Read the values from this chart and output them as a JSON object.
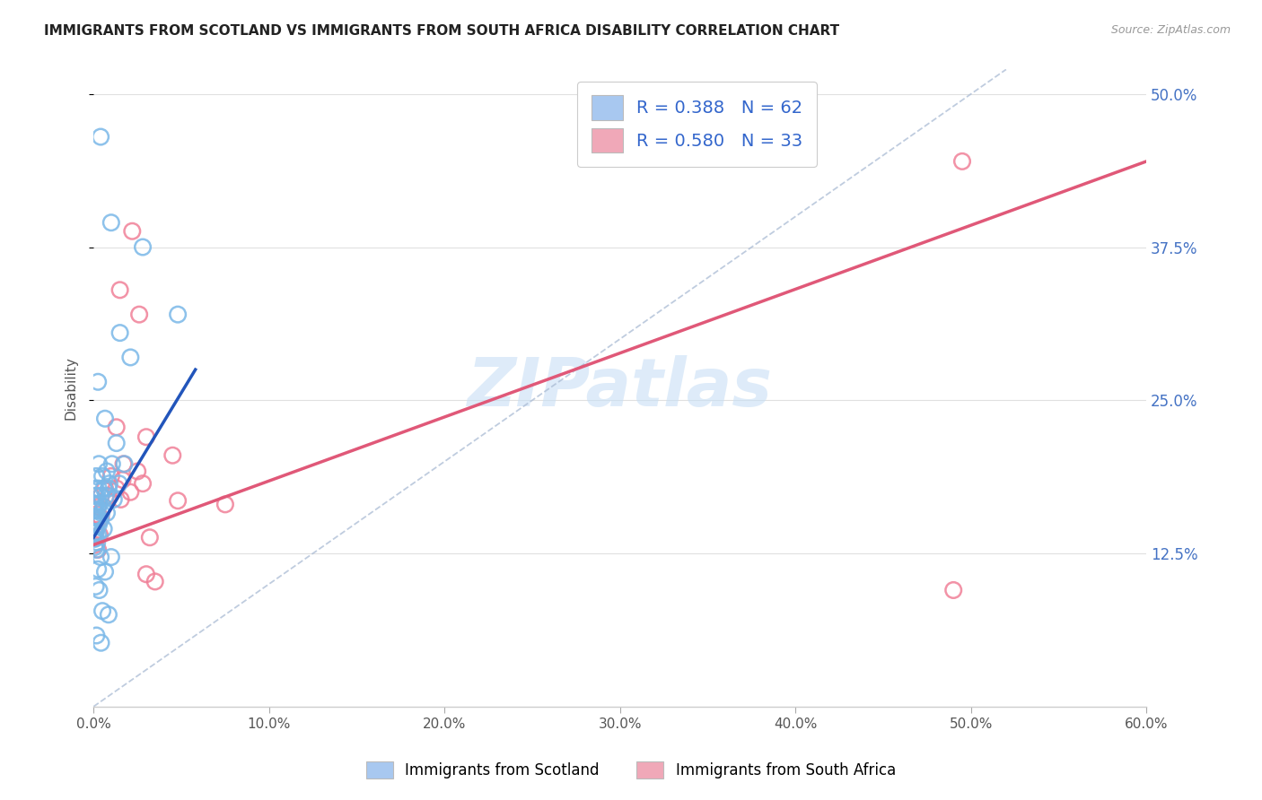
{
  "title": "IMMIGRANTS FROM SCOTLAND VS IMMIGRANTS FROM SOUTH AFRICA DISABILITY CORRELATION CHART",
  "source": "Source: ZipAtlas.com",
  "ylabel": "Disability",
  "x_tick_labels": [
    "0.0%",
    "10.0%",
    "20.0%",
    "30.0%",
    "40.0%",
    "50.0%",
    "60.0%"
  ],
  "x_tick_vals": [
    0.0,
    10.0,
    20.0,
    30.0,
    40.0,
    50.0,
    60.0
  ],
  "y_tick_labels_right": [
    "12.5%",
    "25.0%",
    "37.5%",
    "50.0%"
  ],
  "y_tick_vals": [
    12.5,
    25.0,
    37.5,
    50.0
  ],
  "xlim": [
    0.0,
    60.0
  ],
  "ylim": [
    0.0,
    52.0
  ],
  "legend_R1": "R = 0.388",
  "legend_N1": "N = 62",
  "legend_R2": "R = 0.580",
  "legend_N2": "N = 33",
  "legend_color1": "#a8c8f0",
  "legend_color2": "#f0a8b8",
  "scotland_color": "#7ab8e8",
  "south_africa_color": "#f08098",
  "scotland_edge": "#5090c8",
  "south_africa_edge": "#e05070",
  "watermark_text": "ZIPatlas",
  "watermark_color": "#c8dff5",
  "background_color": "#ffffff",
  "grid_color": "#e0e0e0",
  "scotland_points": [
    [
      0.4,
      46.5
    ],
    [
      1.0,
      39.5
    ],
    [
      2.8,
      37.5
    ],
    [
      4.8,
      32.0
    ],
    [
      1.5,
      30.5
    ],
    [
      2.1,
      28.5
    ],
    [
      0.25,
      26.5
    ],
    [
      0.65,
      23.5
    ],
    [
      1.3,
      21.5
    ],
    [
      0.3,
      19.8
    ],
    [
      1.05,
      19.8
    ],
    [
      1.75,
      19.8
    ],
    [
      0.75,
      19.2
    ],
    [
      0.15,
      18.8
    ],
    [
      0.5,
      18.8
    ],
    [
      0.9,
      18.2
    ],
    [
      1.45,
      18.2
    ],
    [
      0.12,
      17.8
    ],
    [
      0.28,
      17.8
    ],
    [
      0.58,
      17.8
    ],
    [
      0.85,
      17.8
    ],
    [
      0.08,
      17.2
    ],
    [
      0.2,
      17.2
    ],
    [
      0.42,
      17.2
    ],
    [
      0.7,
      17.2
    ],
    [
      1.15,
      16.9
    ],
    [
      0.06,
      16.5
    ],
    [
      0.15,
      16.5
    ],
    [
      0.32,
      16.5
    ],
    [
      0.55,
      16.3
    ],
    [
      0.04,
      16.0
    ],
    [
      0.1,
      16.0
    ],
    [
      0.22,
      16.0
    ],
    [
      0.45,
      15.8
    ],
    [
      0.75,
      15.8
    ],
    [
      0.02,
      15.5
    ],
    [
      0.08,
      15.5
    ],
    [
      0.18,
      15.5
    ],
    [
      0.38,
      15.2
    ],
    [
      0.015,
      15.0
    ],
    [
      0.065,
      15.0
    ],
    [
      0.15,
      14.8
    ],
    [
      0.28,
      14.8
    ],
    [
      0.58,
      14.5
    ],
    [
      0.05,
      14.2
    ],
    [
      0.12,
      14.2
    ],
    [
      0.25,
      14.0
    ],
    [
      0.03,
      13.7
    ],
    [
      0.1,
      13.7
    ],
    [
      0.2,
      13.4
    ],
    [
      0.06,
      13.0
    ],
    [
      0.16,
      12.8
    ],
    [
      0.4,
      12.2
    ],
    [
      1.0,
      12.2
    ],
    [
      0.25,
      11.2
    ],
    [
      0.65,
      11.0
    ],
    [
      0.12,
      9.8
    ],
    [
      0.32,
      9.5
    ],
    [
      0.5,
      7.8
    ],
    [
      0.85,
      7.5
    ],
    [
      0.16,
      5.8
    ],
    [
      0.42,
      5.2
    ]
  ],
  "south_africa_points": [
    [
      49.5,
      44.5
    ],
    [
      2.2,
      38.8
    ],
    [
      1.5,
      34.0
    ],
    [
      2.6,
      32.0
    ],
    [
      1.3,
      22.8
    ],
    [
      3.0,
      22.0
    ],
    [
      4.5,
      20.5
    ],
    [
      1.7,
      19.8
    ],
    [
      2.5,
      19.2
    ],
    [
      1.0,
      18.8
    ],
    [
      1.65,
      18.5
    ],
    [
      2.8,
      18.2
    ],
    [
      0.65,
      17.8
    ],
    [
      1.3,
      17.8
    ],
    [
      2.1,
      17.5
    ],
    [
      0.42,
      17.2
    ],
    [
      0.85,
      17.2
    ],
    [
      1.55,
      16.9
    ],
    [
      0.25,
      16.3
    ],
    [
      0.58,
      16.3
    ],
    [
      0.18,
      15.7
    ],
    [
      0.42,
      15.4
    ],
    [
      0.12,
      15.0
    ],
    [
      0.1,
      14.3
    ],
    [
      0.35,
      14.0
    ],
    [
      0.08,
      13.2
    ],
    [
      0.25,
      12.8
    ],
    [
      4.8,
      16.8
    ],
    [
      7.5,
      16.5
    ],
    [
      3.2,
      13.8
    ],
    [
      3.0,
      10.8
    ],
    [
      3.5,
      10.2
    ],
    [
      49.0,
      9.5
    ]
  ],
  "scotland_trendline": [
    0.0,
    13.8,
    5.8,
    27.5
  ],
  "south_africa_trendline": [
    0.0,
    13.2,
    60.0,
    44.5
  ],
  "diagonal_dashed": [
    0.0,
    0.0,
    52.0,
    52.0
  ],
  "bottom_legend": [
    {
      "label": "Immigrants from Scotland",
      "color": "#a8c8f0"
    },
    {
      "label": "Immigrants from South Africa",
      "color": "#f0a8b8"
    }
  ]
}
